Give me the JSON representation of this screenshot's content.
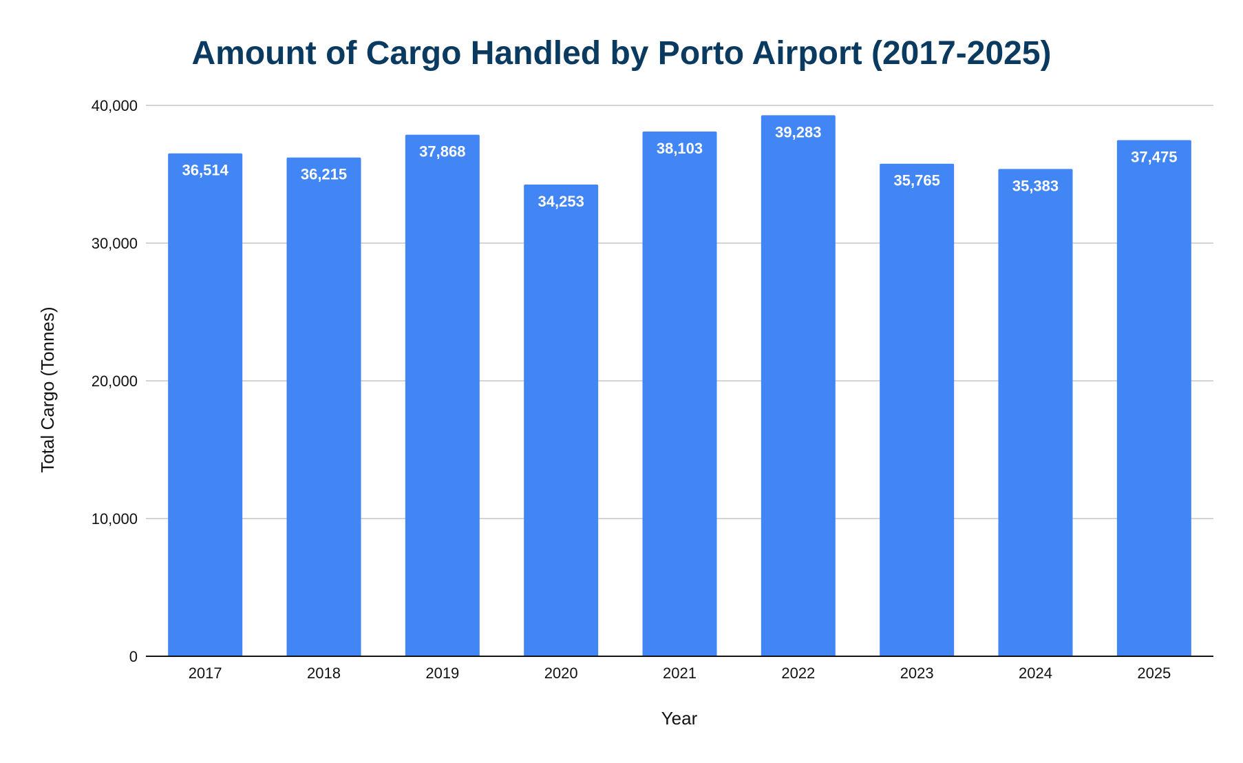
{
  "chart_data": {
    "type": "bar",
    "title": "Amount of Cargo Handled by Porto Airport (2017-2025)",
    "xlabel": "Year",
    "ylabel": "Total Cargo (Tonnes)",
    "categories": [
      "2017",
      "2018",
      "2019",
      "2020",
      "2021",
      "2022",
      "2023",
      "2024",
      "2025"
    ],
    "values": [
      36514,
      36215,
      37868,
      34253,
      38103,
      39283,
      35765,
      35383,
      37475
    ],
    "data_labels": [
      "36,514",
      "36,215",
      "37,868",
      "34,253",
      "38,103",
      "39,283",
      "35,765",
      "35,383",
      "37,475"
    ],
    "ylim": [
      0,
      40000
    ],
    "yticks": [
      0,
      10000,
      20000,
      30000,
      40000
    ],
    "ytick_labels": [
      "0",
      "10,000",
      "20,000",
      "30,000",
      "40,000"
    ],
    "grid": true,
    "legend": "none",
    "bar_color": "#4285f4",
    "title_color": "#0b3a61"
  }
}
